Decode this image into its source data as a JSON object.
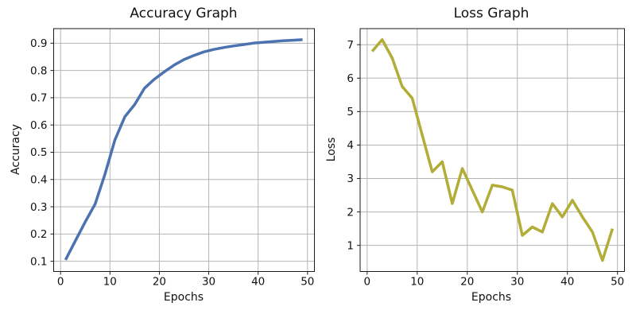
{
  "figure": {
    "background": "#ffffff",
    "grid_color": "#b4b4b4",
    "axis_color": "#1a1a1a",
    "text_color": "#111111"
  },
  "chart_data": [
    {
      "type": "line",
      "title": "Accuracy Graph",
      "xlabel": "Epochs",
      "ylabel": "Accuracy",
      "x": [
        1,
        3,
        5,
        7,
        9,
        11,
        13,
        15,
        17,
        19,
        21,
        23,
        25,
        27,
        29,
        31,
        33,
        35,
        37,
        39,
        41,
        43,
        45,
        47,
        49
      ],
      "values": [
        0.105,
        0.175,
        0.245,
        0.31,
        0.42,
        0.545,
        0.63,
        0.675,
        0.735,
        0.768,
        0.795,
        0.82,
        0.84,
        0.855,
        0.868,
        0.877,
        0.884,
        0.89,
        0.895,
        0.9,
        0.903,
        0.906,
        0.909,
        0.911,
        0.913
      ],
      "xlim": [
        -1.4,
        51.4
      ],
      "ylim": [
        0.0625,
        0.9535
      ],
      "xticks": [
        0,
        10,
        20,
        30,
        40,
        50
      ],
      "xticklabels": [
        "0",
        "10",
        "20",
        "30",
        "40",
        "50"
      ],
      "yticks": [
        0.1,
        0.2,
        0.3,
        0.4,
        0.5,
        0.6,
        0.7,
        0.8,
        0.9
      ],
      "yticklabels": [
        "0.1",
        "0.2",
        "0.3",
        "0.4",
        "0.5",
        "0.6",
        "0.7",
        "0.8",
        "0.9"
      ],
      "grid": true,
      "legend_position": "none",
      "line_color": "#4c72b0"
    },
    {
      "type": "line",
      "title": "Loss Graph",
      "xlabel": "Epochs",
      "ylabel": "Loss",
      "x": [
        1,
        3,
        5,
        7,
        9,
        11,
        13,
        15,
        17,
        19,
        21,
        23,
        25,
        27,
        29,
        31,
        33,
        35,
        37,
        39,
        41,
        43,
        45,
        47,
        49
      ],
      "values": [
        6.8,
        7.15,
        6.6,
        5.75,
        5.4,
        4.3,
        3.2,
        3.5,
        2.25,
        3.3,
        2.65,
        2.0,
        2.8,
        2.75,
        2.65,
        1.3,
        1.55,
        1.4,
        2.25,
        1.85,
        2.35,
        1.85,
        1.4,
        0.55,
        1.5
      ],
      "xlim": [
        -1.4,
        51.4
      ],
      "ylim": [
        0.22,
        7.48
      ],
      "xticks": [
        0,
        10,
        20,
        30,
        40,
        50
      ],
      "xticklabels": [
        "0",
        "10",
        "20",
        "30",
        "40",
        "50"
      ],
      "yticks": [
        1,
        2,
        3,
        4,
        5,
        6,
        7
      ],
      "yticklabels": [
        "1",
        "2",
        "3",
        "4",
        "5",
        "6",
        "7"
      ],
      "grid": true,
      "legend_position": "none",
      "line_color": "#b1ad36"
    }
  ]
}
